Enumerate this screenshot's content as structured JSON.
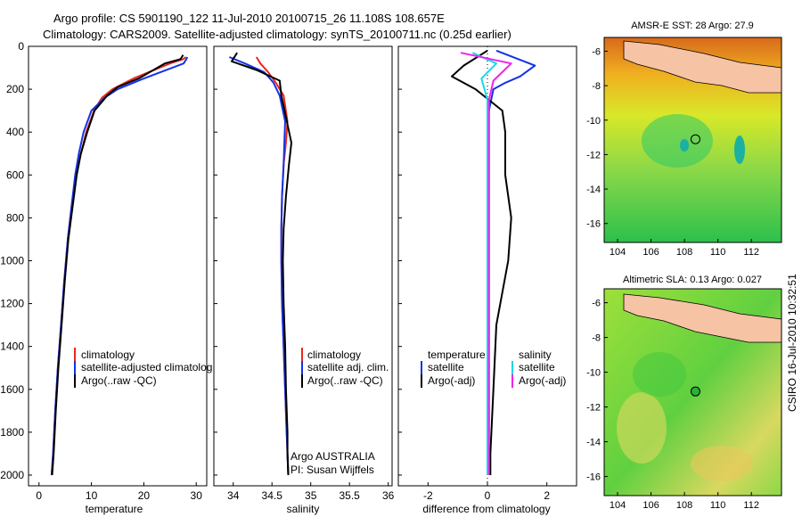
{
  "header": {
    "title_line1": "Argo profile: CS 5901190_122 11-Jul-2010 20100715_26 11.108S 108.657E",
    "title_line2": "Climatology: CARS2009. Satellite-adjusted climatology: synTS_20100711.nc (0.25d earlier)"
  },
  "stamp": "CSIRO 16-Jul-2010 10:32:51",
  "colors": {
    "climatology": "#e8281e",
    "satellite": "#1432e6",
    "argo": "#000000",
    "salinity_satellite": "#18d8e8",
    "salinity_argo": "#ee22ee",
    "land": "#f6c3a4"
  },
  "chart_data": [
    {
      "type": "line",
      "id": "temperature",
      "xlabel": "temperature",
      "xlim": [
        -2,
        32
      ],
      "ylim": [
        2050,
        0
      ],
      "xticks": [
        0,
        10,
        20,
        30
      ],
      "yticks": [
        0,
        200,
        400,
        600,
        800,
        1000,
        1200,
        1400,
        1600,
        1800,
        2000
      ],
      "legend": [
        "climatology",
        "satellite-adjusted climatolog",
        "Argo(..raw -QC)"
      ],
      "series": [
        {
          "name": "climatology",
          "color": "#e8281e",
          "x": [
            28,
            27.5,
            25,
            18,
            14,
            12,
            10.5,
            9,
            8,
            7,
            6.2,
            5.5,
            4.8,
            4.2,
            3.6,
            3.1,
            2.7,
            2.4
          ],
          "y": [
            50,
            60,
            80,
            150,
            200,
            240,
            300,
            400,
            500,
            600,
            750,
            900,
            1100,
            1300,
            1500,
            1700,
            1900,
            2000
          ]
        },
        {
          "name": "satellite-adjusted climatolog",
          "color": "#1432e6",
          "x": [
            28.3,
            28.1,
            27.6,
            20,
            15,
            12.5,
            10,
            8.5,
            7.6,
            6.9,
            6.2,
            5.5,
            4.8,
            4.2,
            3.6,
            3.1,
            2.7,
            2.4
          ],
          "y": [
            50,
            60,
            80,
            150,
            200,
            240,
            300,
            400,
            500,
            600,
            750,
            900,
            1100,
            1300,
            1500,
            1700,
            1900,
            2000
          ]
        },
        {
          "name": "Argo(..raw -QC)",
          "color": "#000000",
          "x": [
            27.5,
            27,
            24,
            19,
            15,
            13,
            10.6,
            9.2,
            8,
            7.2,
            6.4,
            5.6,
            4.9,
            4.3,
            3.7,
            3.2,
            2.8,
            2.5
          ],
          "y": [
            40,
            60,
            80,
            150,
            190,
            230,
            300,
            400,
            500,
            600,
            750,
            900,
            1100,
            1300,
            1500,
            1700,
            1900,
            2000
          ]
        }
      ]
    },
    {
      "type": "line",
      "id": "salinity",
      "xlabel": "salinity",
      "xlim": [
        33.75,
        36.05
      ],
      "ylim": [
        2050,
        0
      ],
      "xticks": [
        34,
        34.5,
        35,
        35.5,
        36
      ],
      "legend": [
        "climatology",
        "satellite adj. clim.",
        "Argo(..raw -QC)"
      ],
      "annotation": [
        "Argo AUSTRALIA",
        "PI: Susan Wijffels"
      ],
      "series": [
        {
          "name": "climatology",
          "color": "#e8281e",
          "x": [
            34.3,
            34.35,
            34.45,
            34.55,
            34.65,
            34.7,
            34.68,
            34.65,
            34.63,
            34.62,
            34.62,
            34.63,
            34.65,
            34.67,
            34.69,
            34.7,
            34.71
          ],
          "y": [
            50,
            80,
            120,
            170,
            230,
            350,
            450,
            550,
            700,
            850,
            1000,
            1200,
            1400,
            1600,
            1800,
            1900,
            2000
          ]
        },
        {
          "name": "satellite adj. clim.",
          "color": "#1432e6",
          "x": [
            33.95,
            34.15,
            34.4,
            34.52,
            34.6,
            34.67,
            34.66,
            34.65,
            34.63,
            34.62,
            34.62,
            34.63,
            34.65,
            34.67,
            34.69,
            34.7,
            34.71
          ],
          "y": [
            50,
            80,
            120,
            170,
            230,
            350,
            450,
            550,
            700,
            850,
            1000,
            1200,
            1400,
            1600,
            1800,
            1900,
            2000
          ]
        },
        {
          "name": "Argo(..raw -QC)",
          "color": "#000000",
          "x": [
            34.05,
            33.98,
            34.3,
            34.6,
            34.62,
            34.68,
            34.75,
            34.72,
            34.68,
            34.65,
            34.64,
            34.65,
            34.67,
            34.68,
            34.7,
            34.7,
            34.71
          ],
          "y": [
            30,
            70,
            110,
            160,
            230,
            330,
            450,
            550,
            700,
            850,
            1000,
            1200,
            1400,
            1600,
            1800,
            1900,
            2000
          ]
        }
      ]
    },
    {
      "type": "line",
      "id": "difference",
      "xlabel": "difference from climatology",
      "xlim": [
        -3,
        3
      ],
      "ylim": [
        2050,
        0
      ],
      "xticks": [
        -2,
        0,
        2
      ],
      "legend_temp_header": "temperature",
      "legend_temp": [
        "satellite",
        "Argo(-adj)"
      ],
      "legend_sal_header": "salinity",
      "legend_sal": [
        "satellite",
        "Argo(-adj)"
      ],
      "series": [
        {
          "name": "temperature satellite",
          "color": "#1432e6",
          "x": [
            0.3,
            1.6,
            1.1,
            0.6,
            0.2,
            0.05,
            0.05,
            0.05,
            0.05,
            0.05,
            0.05,
            0.05,
            0.05
          ],
          "y": [
            20,
            90,
            140,
            170,
            200,
            300,
            500,
            800,
            1100,
            1400,
            1700,
            1900,
            2000
          ]
        },
        {
          "name": "temperature Argo(-adj)",
          "color": "#000000",
          "x": [
            0,
            -0.8,
            -1.2,
            -0.4,
            0.5,
            0.6,
            0.6,
            0.8,
            0.7,
            0.3,
            0.2,
            0.1,
            0.1
          ],
          "y": [
            20,
            90,
            140,
            200,
            300,
            400,
            600,
            800,
            1000,
            1300,
            1600,
            1900,
            2000
          ]
        },
        {
          "name": "salinity satellite",
          "color": "#18d8e8",
          "x": [
            -0.5,
            0.3,
            -0.2,
            0,
            0,
            0,
            0,
            0,
            0,
            0
          ],
          "y": [
            30,
            80,
            150,
            250,
            400,
            700,
            1000,
            1400,
            1800,
            2000
          ]
        },
        {
          "name": "salinity Argo(-adj)",
          "color": "#ee22ee",
          "x": [
            -0.9,
            0.8,
            0.2,
            0.05,
            0.05,
            0.05,
            0.05,
            0.05,
            0.05
          ],
          "y": [
            30,
            80,
            160,
            250,
            500,
            900,
            1300,
            1700,
            2000
          ]
        }
      ]
    }
  ],
  "maps": [
    {
      "id": "sst",
      "title": "AMSR-E SST: 28 Argo: 27.9",
      "xticks": [
        104,
        106,
        108,
        110,
        112
      ],
      "yticks": [
        -6,
        -8,
        -10,
        -12,
        -14,
        -16
      ],
      "xlim": [
        103.2,
        113.8
      ],
      "ylim": [
        -17.1,
        -5.2
      ],
      "argo_marker": {
        "lon": 108.657,
        "lat": -11.108
      }
    },
    {
      "id": "sla",
      "title": "Altimetric SLA: 0.13 Argo: 0.027",
      "xticks": [
        104,
        106,
        108,
        110,
        112
      ],
      "yticks": [
        -6,
        -8,
        -10,
        -12,
        -14,
        -16
      ],
      "xlim": [
        103.2,
        113.8
      ],
      "ylim": [
        -17.1,
        -5.2
      ],
      "argo_marker": {
        "lon": 108.657,
        "lat": -11.108
      }
    }
  ]
}
